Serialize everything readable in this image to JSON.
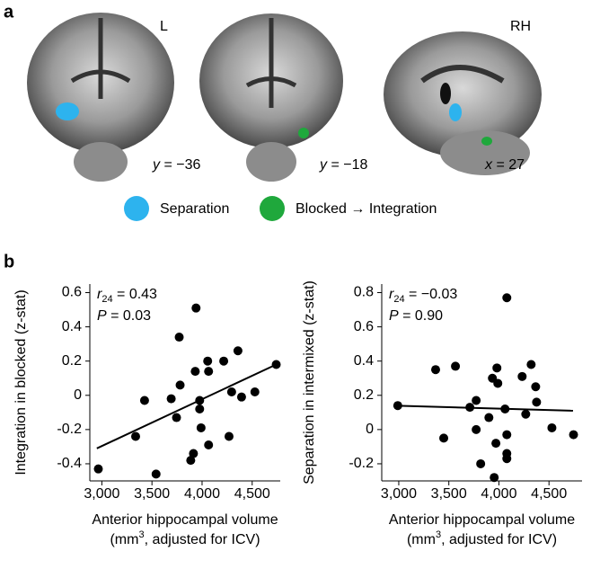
{
  "panel_a": {
    "label": "a",
    "hemisphere_left": "L",
    "hemisphere_right": "RH",
    "slices": [
      {
        "axis": "y",
        "rest": " = −36"
      },
      {
        "axis": "y",
        "rest": " = −18"
      },
      {
        "axis": "x",
        "rest": " = 27"
      }
    ],
    "legend": [
      {
        "name": "Separation",
        "color": "#2db3ee"
      },
      {
        "name": "Blocked → Integration",
        "color": "#1fa83c"
      }
    ]
  },
  "panel_b": {
    "label": "b"
  },
  "chart_data": [
    {
      "type": "scatter",
      "color": "#000000",
      "ylabel": "Integration in blocked (z-stat)",
      "xlabel": "Anterior hippocampal volume",
      "xlabel_units": {
        "before": "(mm",
        "sup": "3",
        "after": ", adjusted for ICV)"
      },
      "annotations": [
        {
          "text": "r",
          "sub": "24",
          "rest": " = 0.43"
        },
        {
          "text": "P",
          "rest": " = 0.03"
        }
      ],
      "x": [
        2965,
        3337,
        3426,
        3541,
        3692,
        3772,
        3745,
        3781,
        3887,
        3914,
        3940,
        3932,
        3976,
        3976,
        3990,
        4056,
        4065,
        4065,
        4216,
        4269,
        4295,
        4358,
        4394,
        4527,
        4740
      ],
      "y": [
        -0.43,
        -0.24,
        -0.03,
        -0.46,
        -0.02,
        0.34,
        -0.13,
        0.06,
        -0.38,
        -0.34,
        0.51,
        0.14,
        -0.03,
        -0.08,
        -0.19,
        0.2,
        0.14,
        -0.29,
        0.2,
        -0.24,
        0.02,
        0.26,
        -0.01,
        0.02,
        0.18
      ],
      "fit": {
        "x": [
          2950,
          4740
        ],
        "y": [
          -0.31,
          0.18
        ]
      },
      "xlim": [
        2880,
        4780
      ],
      "ylim": [
        -0.5,
        0.65
      ],
      "xticks": [
        {
          "value": 3000,
          "label": "3,000"
        },
        {
          "value": 3500,
          "label": "3,500"
        },
        {
          "value": 4000,
          "label": "4,000"
        },
        {
          "value": 4500,
          "label": "4,500"
        }
      ],
      "yticks": [
        -0.4,
        -0.2,
        0,
        0.2,
        0.4,
        0.6
      ]
    },
    {
      "type": "scatter",
      "color": "#000000",
      "ylabel": "Separation in intermixed (z-stat)",
      "xlabel": "Anterior hippocampal volume",
      "xlabel_units": {
        "before": "(mm",
        "sup": "3",
        "after": ", adjusted for ICV)"
      },
      "annotations": [
        {
          "text": "r",
          "sub": "24",
          "rest": " = −0.03"
        },
        {
          "text": "P",
          "rest": " = 0.90"
        }
      ],
      "x": [
        2990,
        3368,
        3449,
        3566,
        3710,
        3773,
        3773,
        3818,
        3900,
        3935,
        3980,
        3989,
        3970,
        3953,
        4061,
        4079,
        4079,
        4079,
        4079,
        4232,
        4268,
        4322,
        4367,
        4376,
        4529,
        4745
      ],
      "y": [
        0.14,
        0.35,
        -0.05,
        0.37,
        0.13,
        0.17,
        0.0,
        -0.2,
        0.07,
        0.3,
        0.36,
        0.27,
        -0.08,
        -0.28,
        0.12,
        -0.14,
        -0.17,
        -0.03,
        0.77,
        0.31,
        0.09,
        0.38,
        0.25,
        0.16,
        0.01,
        -0.03
      ],
      "fit": {
        "x": [
          2950,
          4740
        ],
        "y": [
          0.14,
          0.11
        ]
      },
      "xlim": [
        2830,
        4830
      ],
      "ylim": [
        -0.3,
        0.85
      ],
      "xticks": [
        {
          "value": 3000,
          "label": "3,000"
        },
        {
          "value": 3500,
          "label": "3,500"
        },
        {
          "value": 4000,
          "label": "4,000"
        },
        {
          "value": 4500,
          "label": "4,500"
        }
      ],
      "yticks": [
        -0.2,
        0,
        0.2,
        0.4,
        0.6,
        0.8
      ]
    }
  ]
}
